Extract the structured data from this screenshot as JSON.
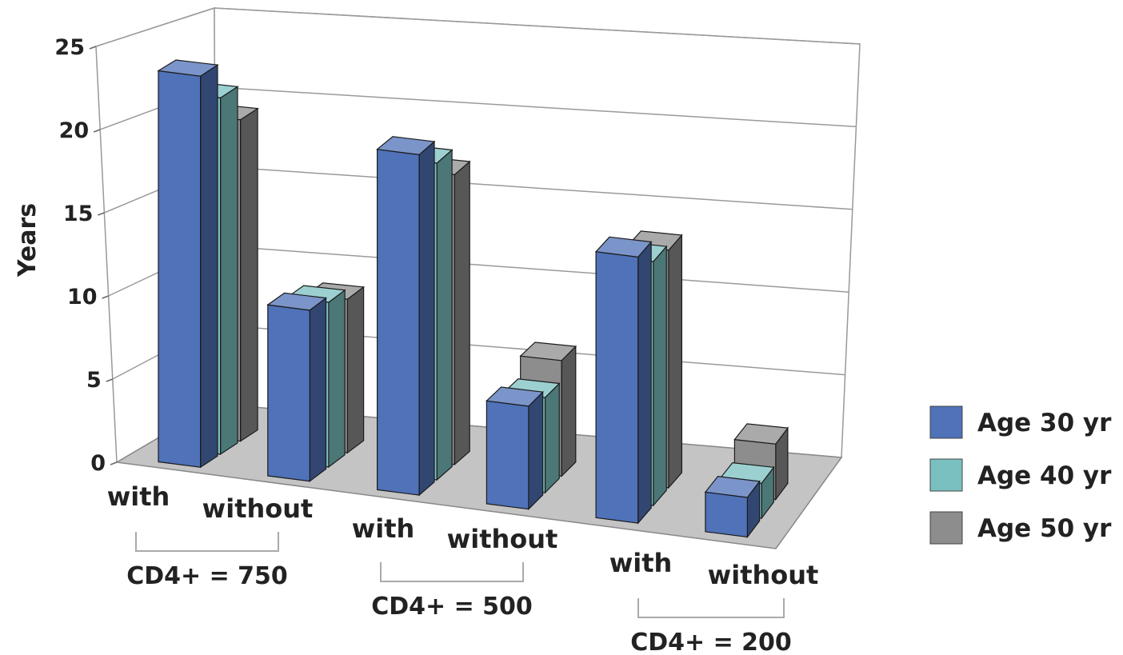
{
  "chart_data": {
    "type": "bar",
    "title": "",
    "ylabel": "Years",
    "ylim": [
      0,
      25
    ],
    "yticks": [
      "0",
      "5",
      "10",
      "15",
      "20",
      "25"
    ],
    "grid": true,
    "legend_position": "right",
    "groups": [
      {
        "label": "CD4+ = 750",
        "categories": [
          "with",
          "without"
        ]
      },
      {
        "label": "CD4+ = 500",
        "categories": [
          "with",
          "without"
        ]
      },
      {
        "label": "CD4+ = 200",
        "categories": [
          "with",
          "without"
        ]
      }
    ],
    "series": [
      {
        "name": "Age 30 yr",
        "color": "#4f72b8",
        "values": [
          24.7,
          10.8,
          21.5,
          6.5,
          16.8,
          2.5
        ]
      },
      {
        "name": "Age 40 yr",
        "color": "#7bc0c0",
        "values": [
          22.5,
          10.4,
          20.0,
          6.0,
          15.4,
          2.2
        ]
      },
      {
        "name": "Age 50 yr",
        "color": "#8d8d8d",
        "values": [
          20.3,
          9.7,
          18.3,
          7.3,
          15.0,
          3.5
        ]
      }
    ]
  }
}
